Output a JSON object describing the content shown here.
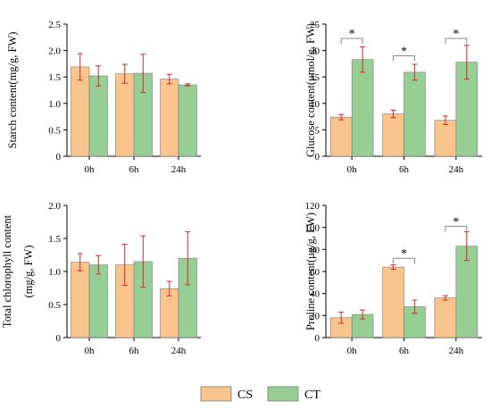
{
  "legend": [
    {
      "label": "CS",
      "color": "#F9C58D"
    },
    {
      "label": "CT",
      "color": "#97CE93"
    }
  ],
  "colors": {
    "bar_edge": "#7a7a7a",
    "error_bar": "#d62728",
    "bracket": "#888888",
    "axis": "#000000"
  },
  "chart_data": [
    {
      "type": "bar",
      "categories": [
        "0h",
        "6h",
        "24h"
      ],
      "ylabel_lines": [
        "Starch content(mg/g, FW)"
      ],
      "ylim": [
        0,
        2.5
      ],
      "yticks": [
        "0",
        "0.5",
        "1.0",
        "1.5",
        "2.0",
        "2.5"
      ],
      "series": [
        {
          "name": "CS",
          "values": [
            1.69,
            1.56,
            1.46
          ],
          "errors": [
            0.25,
            0.18,
            0.09
          ]
        },
        {
          "name": "CT",
          "values": [
            1.52,
            1.57,
            1.35
          ],
          "errors": [
            0.19,
            0.36,
            0.02
          ]
        }
      ],
      "significance": []
    },
    {
      "type": "bar",
      "categories": [
        "0h",
        "6h",
        "24h"
      ],
      "ylabel_lines": [
        "Glucose content(μmol/g, FW)"
      ],
      "ylim": [
        0,
        25
      ],
      "yticks": [
        "0",
        "5",
        "10",
        "15",
        "20",
        "25"
      ],
      "series": [
        {
          "name": "CS",
          "values": [
            7.4,
            8.0,
            6.8
          ],
          "errors": [
            0.5,
            0.7,
            0.8
          ]
        },
        {
          "name": "CT",
          "values": [
            18.3,
            15.9,
            17.8
          ],
          "errors": [
            2.4,
            1.5,
            3.2
          ]
        }
      ],
      "significance": [
        {
          "category": "0h",
          "label": "*",
          "bracket_y": 22.3
        },
        {
          "category": "6h",
          "label": "*",
          "bracket_y": 19.0
        },
        {
          "category": "24h",
          "label": "*",
          "bracket_y": 22.3
        }
      ]
    },
    {
      "type": "bar",
      "categories": [
        "0h",
        "6h",
        "24h"
      ],
      "ylabel_lines": [
        "Total chlorophyll content",
        "(mg/g, FW)"
      ],
      "ylim": [
        0,
        2.0
      ],
      "yticks": [
        "0",
        "0.5",
        "1.0",
        "1.5",
        "2.0"
      ],
      "series": [
        {
          "name": "CS",
          "values": [
            1.14,
            1.1,
            0.74
          ],
          "errors": [
            0.13,
            0.31,
            0.11
          ]
        },
        {
          "name": "CT",
          "values": [
            1.1,
            1.15,
            1.2
          ],
          "errors": [
            0.14,
            0.39,
            0.4
          ]
        }
      ],
      "significance": []
    },
    {
      "type": "bar",
      "categories": [
        "0h",
        "6h",
        "24h"
      ],
      "ylabel_lines": [
        "Proline content(μg/g, FW)"
      ],
      "ylim": [
        0,
        120
      ],
      "yticks": [
        "0",
        "20",
        "40",
        "60",
        "80",
        "100",
        "120"
      ],
      "series": [
        {
          "name": "CS",
          "values": [
            18,
            64,
            36
          ],
          "errors": [
            5,
            2,
            2
          ]
        },
        {
          "name": "CT",
          "values": [
            21,
            28,
            83
          ],
          "errors": [
            4,
            6,
            13
          ]
        }
      ],
      "significance": [
        {
          "category": "6h",
          "label": "*",
          "bracket_y": 72
        },
        {
          "category": "24h",
          "label": "*",
          "bracket_y": 101
        }
      ]
    }
  ]
}
